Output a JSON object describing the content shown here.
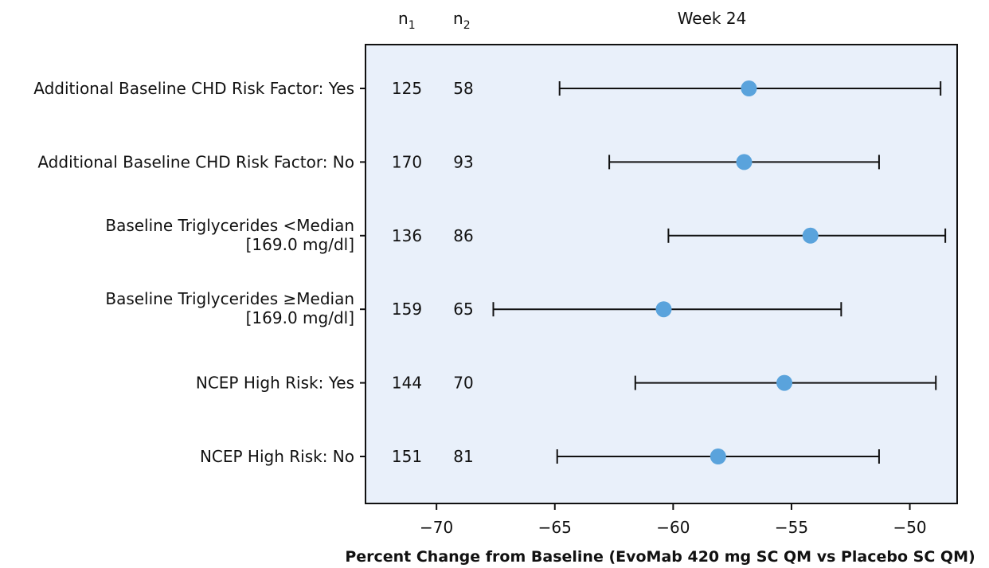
{
  "chart_data": {
    "type": "forest",
    "header": {
      "n1_label": "n",
      "n1_sub": "1",
      "n2_label": "n",
      "n2_sub": "2",
      "panel_title": "Week 24"
    },
    "xlabel": "Percent Change from Baseline (EvoMab 420 mg SC QM vs Placebo SC QM)",
    "xlim": [
      -73,
      -48
    ],
    "xticks": [
      -70,
      -65,
      -60,
      -55,
      -50
    ],
    "xtick_labels": [
      "−70",
      "−65",
      "−60",
      "−55",
      "−50"
    ],
    "rows": [
      {
        "label_lines": [
          "Additional Baseline CHD Risk Factor: Yes"
        ],
        "n1": "125",
        "n2": "58",
        "estimate": -56.8,
        "lower": -64.8,
        "upper": -48.7
      },
      {
        "label_lines": [
          "Additional Baseline CHD Risk Factor: No"
        ],
        "n1": "170",
        "n2": "93",
        "estimate": -57.0,
        "lower": -62.7,
        "upper": -51.3
      },
      {
        "label_lines": [
          "Baseline Triglycerides <Median",
          "[169.0 mg/dl]"
        ],
        "n1": "136",
        "n2": "86",
        "estimate": -54.2,
        "lower": -60.2,
        "upper": -48.5
      },
      {
        "label_lines": [
          "Baseline Triglycerides ≥Median",
          "[169.0 mg/dl]"
        ],
        "n1": "159",
        "n2": "65",
        "estimate": -60.4,
        "lower": -67.6,
        "upper": -52.9
      },
      {
        "label_lines": [
          "NCEP High Risk: Yes"
        ],
        "n1": "144",
        "n2": "70",
        "estimate": -55.3,
        "lower": -61.6,
        "upper": -48.9
      },
      {
        "label_lines": [
          "NCEP High Risk: No"
        ],
        "n1": "151",
        "n2": "81",
        "estimate": -58.1,
        "lower": -64.9,
        "upper": -51.3
      }
    ],
    "colors": {
      "panel_bg": "#e9f0fa",
      "point": "#5aa3dc",
      "line": "#111111"
    }
  }
}
